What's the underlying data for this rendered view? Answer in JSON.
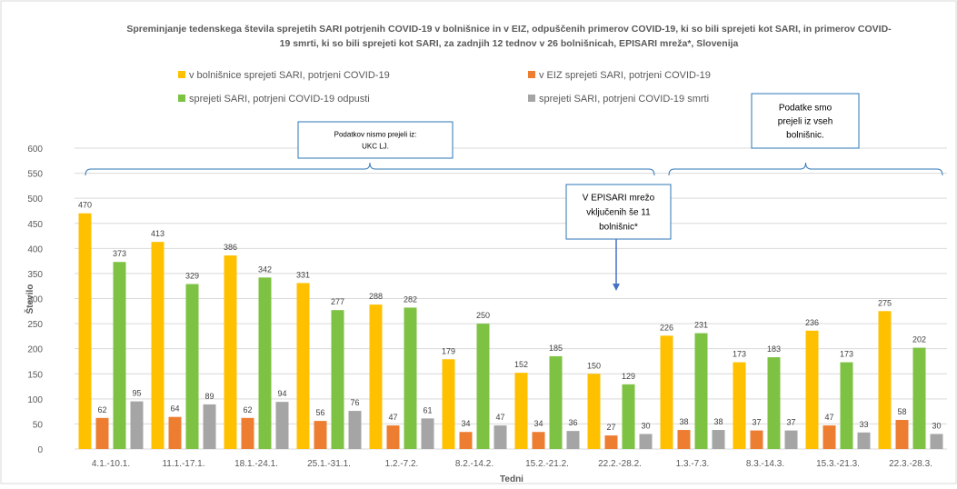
{
  "chart_data": {
    "type": "bar",
    "title_lines": [
      "Spreminjanje tedenskega števila sprejetih SARI potrjenih COVID-19 v bolnišnice in v EIZ, odpuščenih primerov COVID-19, ki so bili sprejeti kot SARI, in primerov COVID-",
      "19 smrti, ki so bili sprejeti kot SARI, za zadnjih 12 tednov  v 26 bolnišnicah, EPISARI mreža*, Slovenija"
    ],
    "xlabel": "Tedni",
    "ylabel": "Število",
    "ylim": [
      0,
      600
    ],
    "yticks": [
      0,
      50,
      100,
      150,
      200,
      250,
      300,
      350,
      400,
      450,
      500,
      550,
      600
    ],
    "grid": true,
    "legend_position": "top",
    "categories": [
      "4.1.-10.1.",
      "11.1.-17.1.",
      "18.1.-24.1.",
      "25.1.-31.1.",
      "1.2.-7.2.",
      "8.2.-14.2.",
      "15.2.-21.2.",
      "22.2.-28.2.",
      "1.3.-7.3.",
      "8.3.-14.3.",
      "15.3.-21.3.",
      "22.3.-28.3."
    ],
    "series": [
      {
        "name": "v bolnišnice sprejeti SARI, potrjeni COVID-19",
        "color": "#FFC000",
        "values": [
          470,
          413,
          386,
          331,
          288,
          179,
          152,
          150,
          226,
          173,
          236,
          275
        ]
      },
      {
        "name": "v EIZ sprejeti SARI, potrjeni COVID-19",
        "color": "#ED7D31",
        "values": [
          62,
          64,
          62,
          56,
          47,
          34,
          34,
          27,
          38,
          37,
          47,
          58
        ]
      },
      {
        "name": "sprejeti SARI, potrjeni COVID-19 odpusti",
        "color": "#7DC242",
        "values": [
          373,
          329,
          342,
          277,
          282,
          250,
          185,
          129,
          231,
          183,
          173,
          202
        ]
      },
      {
        "name": "sprejeti SARI, potrjeni COVID-19 smrti",
        "color": "#A5A5A5",
        "values": [
          95,
          89,
          94,
          76,
          61,
          47,
          36,
          30,
          38,
          37,
          33,
          30
        ]
      }
    ],
    "annotations": {
      "left_box": [
        "Podatkov nismo prejeli iz:",
        "UKC LJ."
      ],
      "right_box": [
        "Podatke smo",
        "prejeli iz vseh",
        "bolnišnic."
      ],
      "middle_box": [
        "V EPISARI mrežo",
        "vključenih še 11",
        "bolnišnic*"
      ]
    },
    "colors": {
      "annotation_border": "#2E75B6",
      "arrow": "#4472C4",
      "gridline": "#D9D9D9",
      "axis_text": "#595959"
    }
  }
}
